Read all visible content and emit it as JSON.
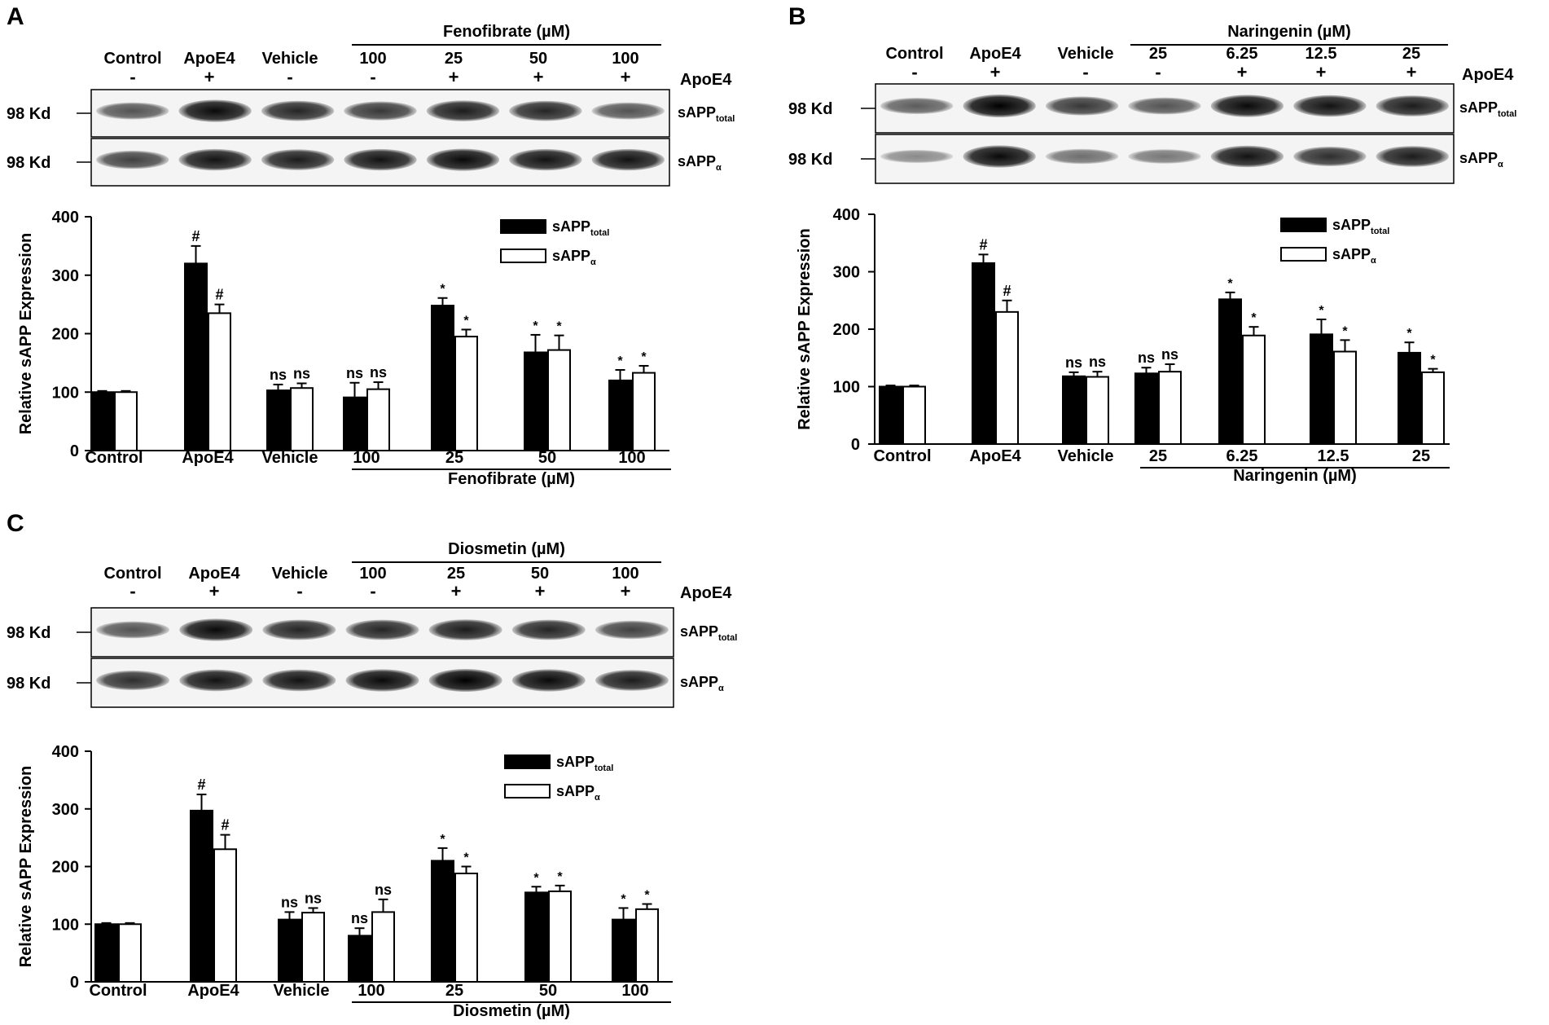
{
  "panels": [
    {
      "letter": "A",
      "drug_header": "Fenofibrate (µM)",
      "lanes": [
        {
          "label": "Control",
          "apoe": "-"
        },
        {
          "label": "ApoE4",
          "apoe": "+"
        },
        {
          "label": "Vehicle",
          "apoe": "-"
        },
        {
          "label": "100",
          "apoe": "-"
        },
        {
          "label": "25",
          "apoe": "+"
        },
        {
          "label": "50",
          "apoe": "+"
        },
        {
          "label": "100",
          "apoe": "+"
        }
      ],
      "apoe_row_label": "ApoE4",
      "blot_rows": [
        {
          "kd": "98 Kd",
          "name_main": "sAPP",
          "name_sub": "total"
        },
        {
          "kd": "98 Kd",
          "name_main": "sAPP",
          "name_sub": "α"
        }
      ],
      "band_intensity": {
        "total": [
          0.55,
          0.95,
          0.8,
          0.7,
          0.85,
          0.8,
          0.55
        ],
        "alpha": [
          0.65,
          0.9,
          0.85,
          0.9,
          0.95,
          0.9,
          0.9
        ]
      },
      "x_categories": [
        "Control",
        "ApoE4",
        "Vehicle",
        "100",
        "25",
        "50",
        "100"
      ],
      "drug_footer": "Fenofibrate (µM)"
    },
    {
      "letter": "B",
      "drug_header": "Naringenin (µM)",
      "lanes": [
        {
          "label": "Control",
          "apoe": "-"
        },
        {
          "label": "ApoE4",
          "apoe": "+"
        },
        {
          "label": "Vehicle",
          "apoe": "-"
        },
        {
          "label": "25",
          "apoe": "-"
        },
        {
          "label": "6.25",
          "apoe": "+"
        },
        {
          "label": "12.5",
          "apoe": "+"
        },
        {
          "label": "25",
          "apoe": "+"
        }
      ],
      "apoe_row_label": "ApoE4",
      "blot_rows": [
        {
          "kd": "98 Kd",
          "name_main": "sAPP",
          "name_sub": "total"
        },
        {
          "kd": "98 Kd",
          "name_main": "sAPP",
          "name_sub": "α"
        }
      ],
      "band_intensity": {
        "total": [
          0.5,
          1.0,
          0.7,
          0.55,
          0.95,
          0.9,
          0.85
        ],
        "alpha": [
          0.25,
          0.95,
          0.4,
          0.35,
          0.9,
          0.75,
          0.85
        ]
      },
      "x_categories": [
        "Control",
        "ApoE4",
        "Vehicle",
        "25",
        "6.25",
        "12.5",
        "25"
      ],
      "drug_footer": "Naringenin (µM)"
    },
    {
      "letter": "C",
      "drug_header": "Diosmetin (µM)",
      "lanes": [
        {
          "label": "Control",
          "apoe": "-"
        },
        {
          "label": "ApoE4",
          "apoe": "+"
        },
        {
          "label": "Vehicle",
          "apoe": "-"
        },
        {
          "label": "100",
          "apoe": "-"
        },
        {
          "label": "25",
          "apoe": "+"
        },
        {
          "label": "50",
          "apoe": "+"
        },
        {
          "label": "100",
          "apoe": "+"
        }
      ],
      "apoe_row_label": "ApoE4",
      "blot_rows": [
        {
          "kd": "98 Kd",
          "name_main": "sAPP",
          "name_sub": "total"
        },
        {
          "kd": "98 Kd",
          "name_main": "sAPP",
          "name_sub": "α"
        }
      ],
      "band_intensity": {
        "total": [
          0.55,
          0.95,
          0.8,
          0.8,
          0.85,
          0.8,
          0.65
        ],
        "alpha": [
          0.75,
          0.9,
          0.9,
          0.95,
          1.0,
          0.95,
          0.85
        ]
      },
      "x_categories": [
        "Control",
        "ApoE4",
        "Vehicle",
        "100",
        "25",
        "50",
        "100"
      ],
      "drug_footer": "Diosmetin (µM)"
    }
  ],
  "chart_data": [
    {
      "type": "bar",
      "panel": "A",
      "categories": [
        "Control",
        "ApoE4",
        "Vehicle",
        "100",
        "25",
        "50",
        "100"
      ],
      "ylabel": "Relative sAPP Expression",
      "ylim": [
        0,
        400
      ],
      "yticks": [
        0,
        100,
        200,
        300,
        400
      ],
      "series": [
        {
          "name": "sAPPtotal",
          "legend_main": "sAPP",
          "legend_sub": "total",
          "fill": "#000000",
          "values": [
            100,
            320,
            103,
            91,
            248,
            168,
            120
          ],
          "errors": [
            2,
            30,
            10,
            25,
            13,
            30,
            18
          ],
          "sig": [
            "",
            "#",
            "ns",
            "ns",
            "*",
            "*",
            "*"
          ]
        },
        {
          "name": "sAPPα",
          "legend_main": "sAPP",
          "legend_sub": "α",
          "fill": "#ffffff",
          "values": [
            100,
            235,
            107,
            105,
            195,
            172,
            133
          ],
          "errors": [
            2,
            15,
            8,
            12,
            12,
            25,
            12
          ],
          "sig": [
            "",
            "#",
            "ns",
            "ns",
            "*",
            "*",
            "*"
          ]
        }
      ]
    },
    {
      "type": "bar",
      "panel": "B",
      "categories": [
        "Control",
        "ApoE4",
        "Vehicle",
        "25",
        "6.25",
        "12.5",
        "25"
      ],
      "ylabel": "Relative sAPP Expression",
      "ylim": [
        0,
        400
      ],
      "yticks": [
        0,
        100,
        200,
        300,
        400
      ],
      "series": [
        {
          "name": "sAPPtotal",
          "legend_main": "sAPP",
          "legend_sub": "total",
          "fill": "#000000",
          "values": [
            100,
            315,
            118,
            123,
            252,
            191,
            159
          ],
          "errors": [
            2,
            15,
            7,
            10,
            12,
            26,
            18
          ],
          "sig": [
            "",
            "#",
            "ns",
            "ns",
            "*",
            "*",
            "*"
          ]
        },
        {
          "name": "sAPPα",
          "legend_main": "sAPP",
          "legend_sub": "α",
          "fill": "#ffffff",
          "values": [
            100,
            230,
            117,
            126,
            189,
            161,
            125
          ],
          "errors": [
            2,
            20,
            9,
            13,
            15,
            20,
            6
          ],
          "sig": [
            "",
            "#",
            "ns",
            "ns",
            "*",
            "*",
            "*"
          ]
        }
      ]
    },
    {
      "type": "bar",
      "panel": "C",
      "categories": [
        "Control",
        "ApoE4",
        "Vehicle",
        "100",
        "25",
        "50",
        "100"
      ],
      "ylabel": "Relative sAPP Expression",
      "ylim": [
        0,
        400
      ],
      "yticks": [
        0,
        100,
        200,
        300,
        400
      ],
      "series": [
        {
          "name": "sAPPtotal",
          "legend_main": "sAPP",
          "legend_sub": "total",
          "fill": "#000000",
          "values": [
            100,
            297,
            108,
            80,
            210,
            155,
            108
          ],
          "errors": [
            2,
            28,
            13,
            13,
            22,
            10,
            20
          ],
          "sig": [
            "",
            "#",
            "ns",
            "ns",
            "*",
            "*",
            "*"
          ]
        },
        {
          "name": "sAPPα",
          "legend_main": "sAPP",
          "legend_sub": "α",
          "fill": "#ffffff",
          "values": [
            100,
            230,
            120,
            121,
            188,
            157,
            126
          ],
          "errors": [
            2,
            25,
            8,
            22,
            12,
            10,
            9
          ],
          "sig": [
            "",
            "#",
            "ns",
            "ns",
            "*",
            "*",
            "*"
          ]
        }
      ]
    }
  ]
}
